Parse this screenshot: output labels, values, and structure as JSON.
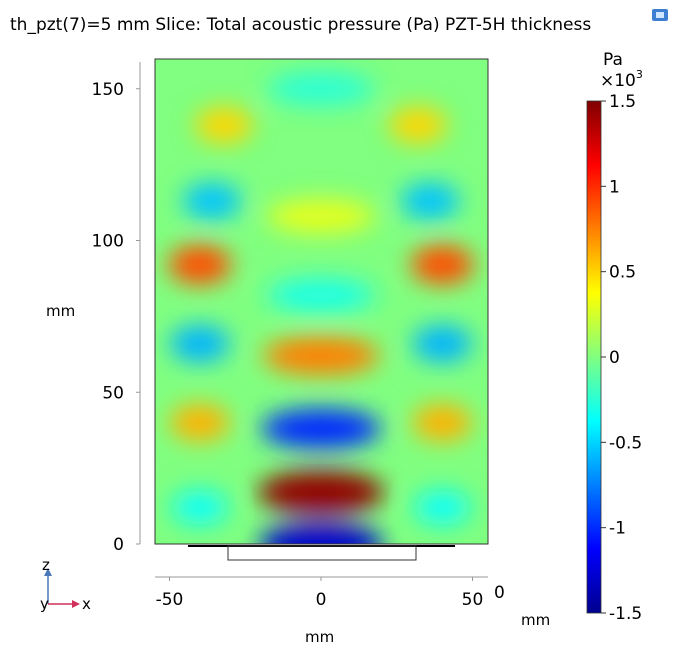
{
  "chart_data": {
    "type": "heatmap",
    "title": "th_pzt(7)=5 mm  Slice: Total acoustic pressure (Pa) PZT-5H thickness",
    "xlabel": "mm",
    "ylabel": "mm",
    "xlim": [
      -55,
      55
    ],
    "ylim": [
      0,
      160
    ],
    "x_ticks": [
      "-50",
      "0",
      "50"
    ],
    "y_ticks": [
      "0",
      "50",
      "100",
      "150"
    ],
    "depth_tick": "0",
    "depth_unit": "mm",
    "colorbar": {
      "unit_line1": "Pa",
      "unit_line2": "×10",
      "unit_exponent": "3",
      "range": [
        -1.5,
        1.5
      ],
      "ticks": [
        "1.5",
        "1",
        "0.5",
        "0",
        "-0.5",
        "-1",
        "-1.5"
      ],
      "colormap": [
        "#00008f",
        "#0000ff",
        "#00ffff",
        "#80ff80",
        "#ffff00",
        "#ff0000",
        "#800000"
      ]
    },
    "field_background": 0.0,
    "pressure_lobes": [
      {
        "x": 0,
        "y": 17,
        "value": 1.45
      },
      {
        "x": 0,
        "y": 0,
        "value": -1.3
      },
      {
        "x": 0,
        "y": 38,
        "value": -1.0
      },
      {
        "x": 0,
        "y": 62,
        "value": 0.75
      },
      {
        "x": 0,
        "y": 82,
        "value": -0.3
      },
      {
        "x": 0,
        "y": 108,
        "value": 0.3
      },
      {
        "x": 0,
        "y": 150,
        "value": -0.25
      },
      {
        "x": -40,
        "y": 12,
        "value": -0.35
      },
      {
        "x": 40,
        "y": 12,
        "value": -0.35
      },
      {
        "x": -40,
        "y": 40,
        "value": 0.6
      },
      {
        "x": 40,
        "y": 40,
        "value": 0.6
      },
      {
        "x": -40,
        "y": 66,
        "value": -0.6
      },
      {
        "x": 40,
        "y": 66,
        "value": -0.6
      },
      {
        "x": -40,
        "y": 92,
        "value": 0.9
      },
      {
        "x": 40,
        "y": 92,
        "value": 0.9
      },
      {
        "x": -36,
        "y": 113,
        "value": -0.55
      },
      {
        "x": 36,
        "y": 113,
        "value": -0.55
      },
      {
        "x": -32,
        "y": 138,
        "value": 0.5
      },
      {
        "x": 32,
        "y": 138,
        "value": 0.5
      }
    ],
    "axis_triad": {
      "z_label": "z",
      "y_label": "y",
      "x_label": "x"
    }
  }
}
